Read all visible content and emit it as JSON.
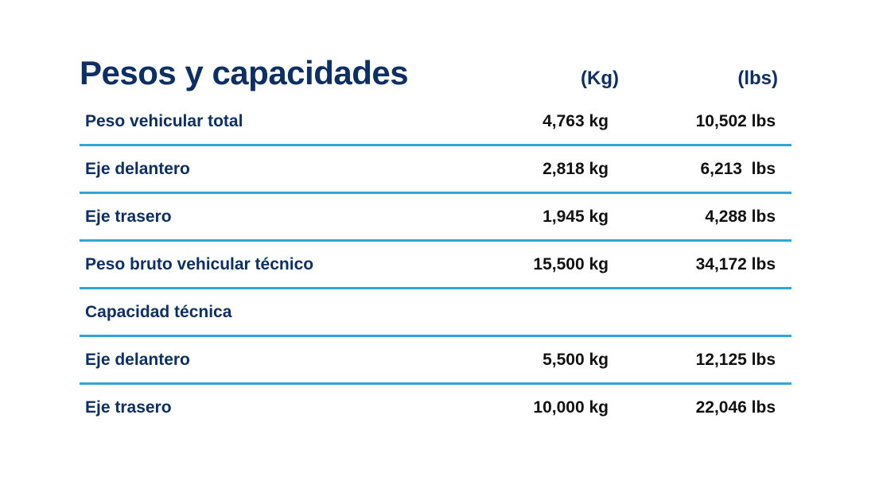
{
  "header": {
    "title": "Pesos y capacidades"
  },
  "table": {
    "columns": {
      "kg": "(Kg)",
      "lbs": "(lbs)"
    },
    "rows": [
      {
        "label": "Peso vehicular total",
        "kg": "4,763 kg",
        "lbs": "10,502 lbs"
      },
      {
        "label": "Eje delantero",
        "kg": "2,818 kg",
        "lbs": "6,213  lbs"
      },
      {
        "label": "Eje trasero",
        "kg": "1,945 kg",
        "lbs": "4,288 lbs"
      },
      {
        "label": "Peso bruto vehicular técnico",
        "kg": "15,500 kg",
        "lbs": "34,172 lbs"
      },
      {
        "label": "Capacidad técnica",
        "kg": "",
        "lbs": ""
      },
      {
        "label": "Eje delantero",
        "kg": "5,500 kg",
        "lbs": "12,125 lbs"
      },
      {
        "label": "Eje trasero",
        "kg": "10,000 kg",
        "lbs": "22,046 lbs"
      }
    ]
  },
  "colors": {
    "navy_text": "#0e2f63",
    "value_text": "#111111",
    "divider_blue": "#2fa5dc",
    "background": "#ffffff"
  }
}
